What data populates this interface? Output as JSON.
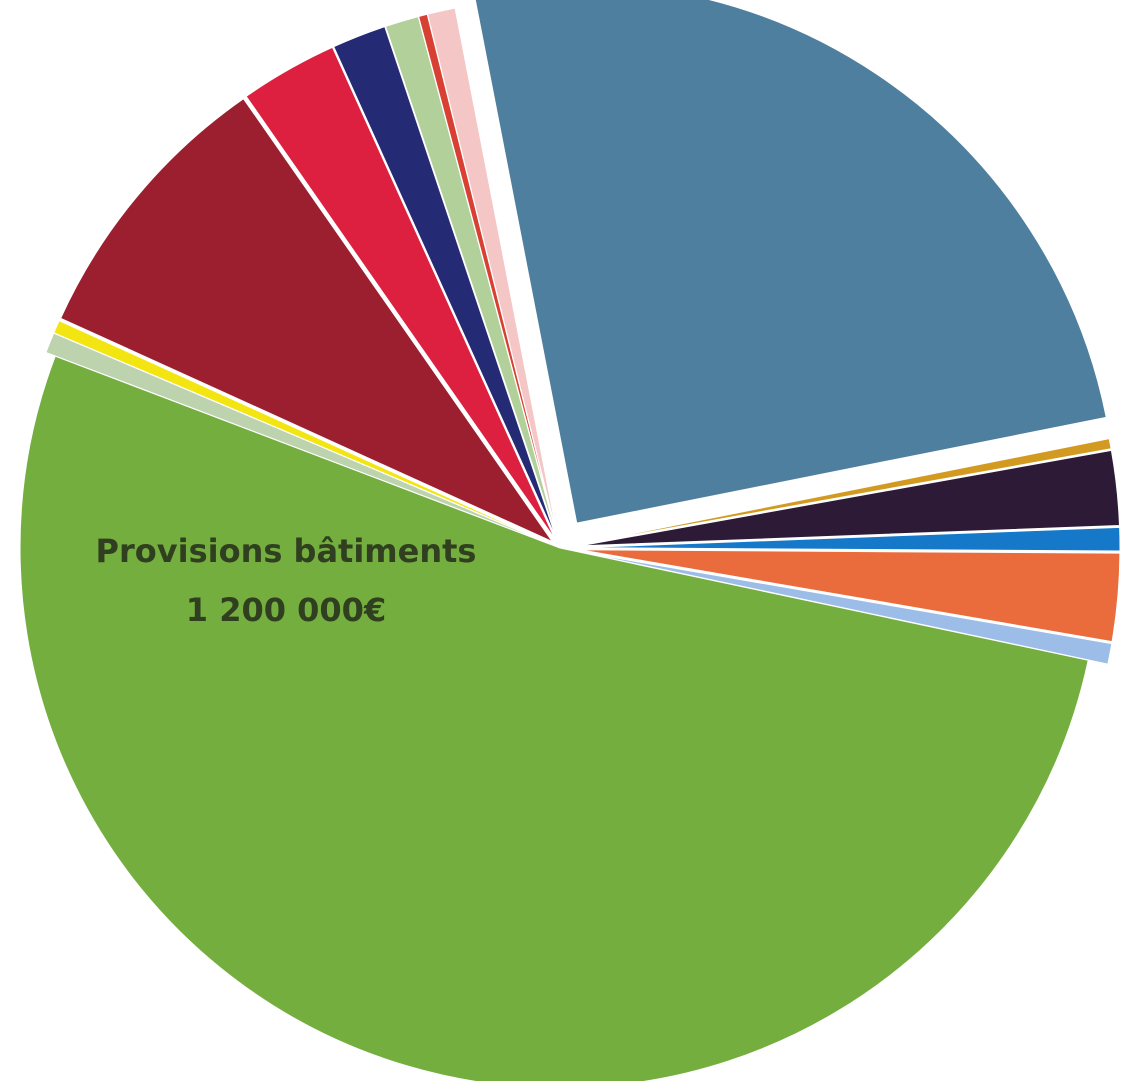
{
  "chart_data": {
    "type": "pie",
    "title": "",
    "slices": [
      {
        "label": "Provisions bâtiments",
        "value_text": "1 200 000€",
        "value": 1200000,
        "color": "#74ae3e"
      },
      {
        "label": "",
        "value": 14000,
        "color": "#bcd3ae"
      },
      {
        "label": "",
        "value": 9000,
        "color": "#f2e512"
      },
      {
        "label": "",
        "value": 195000,
        "color": "#9c1f30"
      },
      {
        "label": "",
        "value": 67000,
        "color": "#de2040"
      },
      {
        "label": "",
        "value": 37000,
        "color": "#242a74"
      },
      {
        "label": "",
        "value": 23000,
        "color": "#b2d09a"
      },
      {
        "label": "",
        "value": 6000,
        "color": "#d94034"
      },
      {
        "label": "",
        "value": 19000,
        "color": "#f4c6c6"
      },
      {
        "label": "",
        "value": 570000,
        "color": "#4f7f9f"
      },
      {
        "label": "",
        "value": 7000,
        "color": "#d39a22"
      },
      {
        "label": "",
        "value": 51000,
        "color": "#2c1a36"
      },
      {
        "label": "",
        "value": 16000,
        "color": "#1578c8"
      },
      {
        "label": "",
        "value": 60000,
        "color": "#ea6b3c"
      },
      {
        "label": "",
        "value": 14000,
        "color": "#9cbde7"
      }
    ],
    "exploded": true,
    "legend": "none"
  }
}
